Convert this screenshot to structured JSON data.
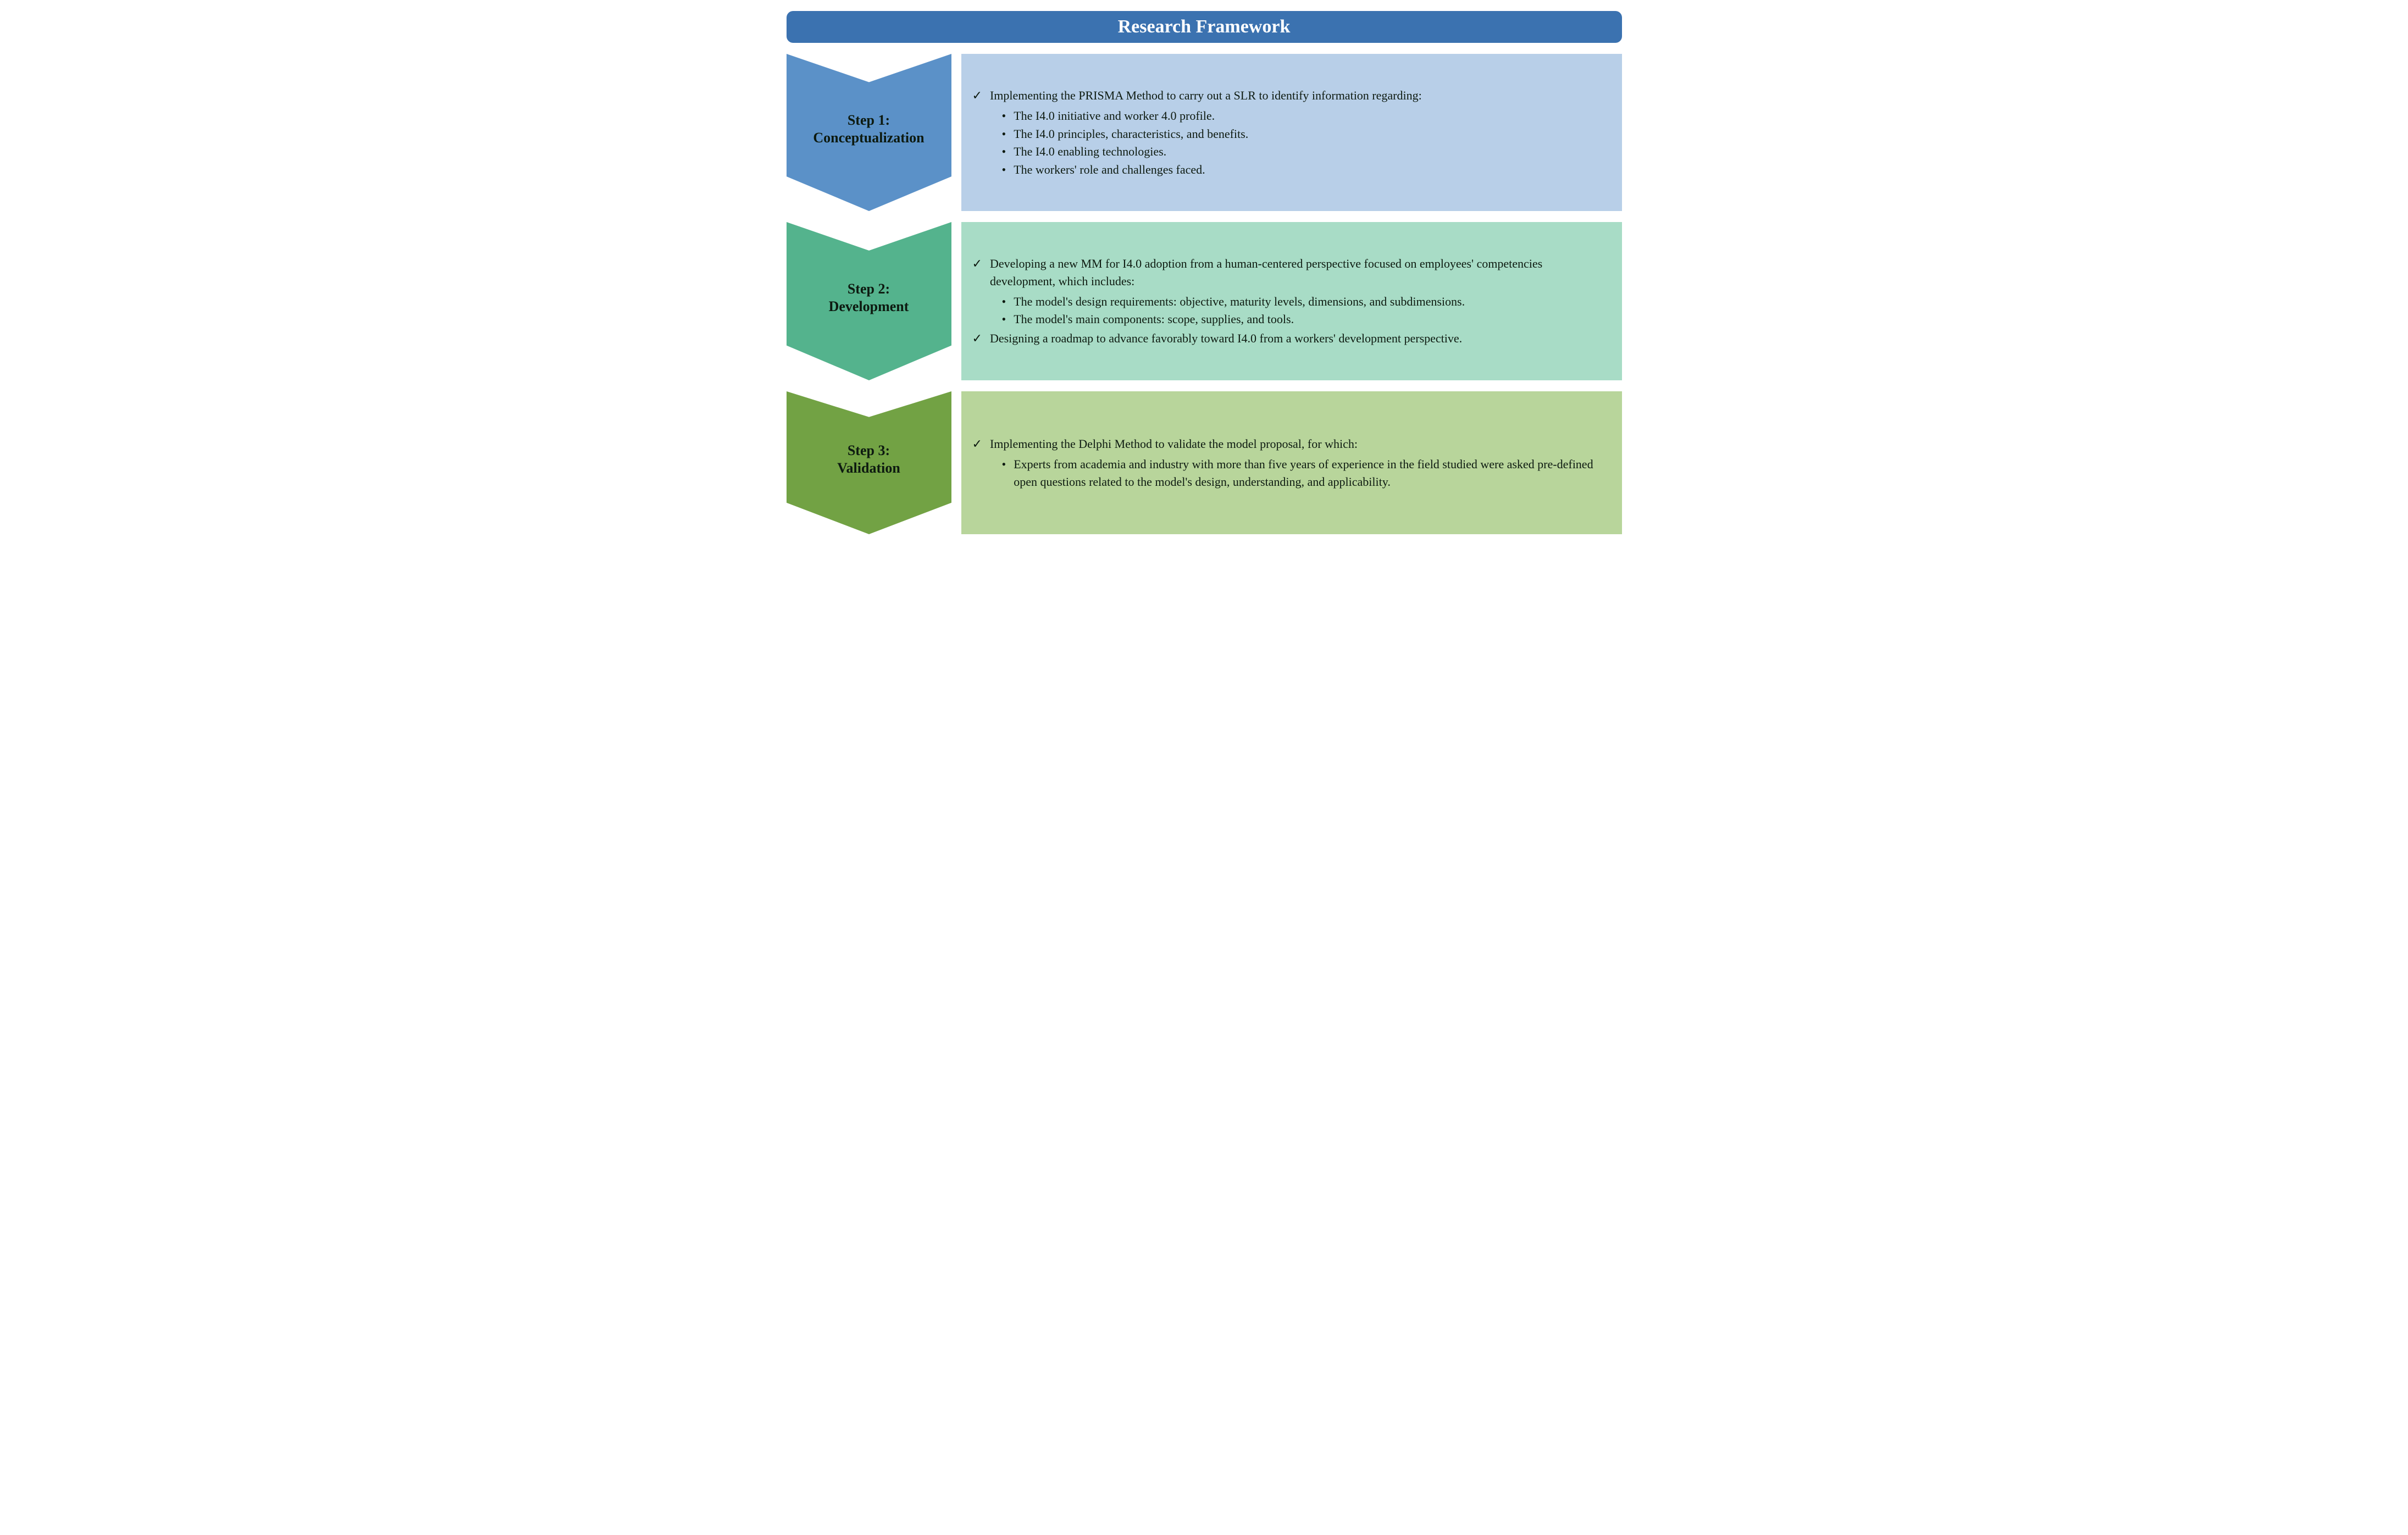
{
  "type": "infographic-flowchart",
  "background_color": "#ffffff",
  "text_color": "#0d1a10",
  "font_family": "Georgia, serif",
  "title_fontsize": 34,
  "step_label_fontsize": 26,
  "body_fontsize": 22,
  "header": {
    "title": "Research Framework",
    "bg_color": "#3b72b0",
    "text_color": "#ffffff",
    "border_radius": 12
  },
  "check_glyph": "✓",
  "bullet_glyph": "•",
  "steps": [
    {
      "id": "step1",
      "label_line1": "Step 1:",
      "label_line2": "Conceptualization",
      "chevron_color": "#5b91c8",
      "content_bg": "#b8cfe8",
      "checks": [
        {
          "text": "Implementing the PRISMA Method to carry out a SLR to identify information regarding:",
          "bullets": [
            "The I4.0 initiative and worker 4.0 profile.",
            "The I4.0 principles, characteristics, and benefits.",
            "The I4.0 enabling technologies.",
            "The workers' role and challenges faced."
          ]
        }
      ]
    },
    {
      "id": "step2",
      "label_line1": "Step 2:",
      "label_line2": "Development",
      "chevron_color": "#54b38d",
      "content_bg": "#a8dcc6",
      "checks": [
        {
          "text": "Developing a new MM for I4.0 adoption from a human-centered perspective focused on employees' competencies development, which includes:",
          "bullets": [
            "The model's design requirements: objective, maturity levels, dimensions, and subdimensions.",
            "The model's main components: scope, supplies, and tools."
          ]
        },
        {
          "text": "Designing a roadmap to advance favorably toward I4.0 from a workers' development perspective.",
          "bullets": []
        }
      ]
    },
    {
      "id": "step3",
      "label_line1": "Step 3:",
      "label_line2": "Validation",
      "chevron_color": "#72a244",
      "content_bg": "#b8d59b",
      "checks": [
        {
          "text": "Implementing the Delphi Method to validate the model proposal, for which:",
          "bullets": [
            "Experts from academia and industry with more than five years of experience in the field studied were asked pre-defined open questions related to the model's design, understanding, and applicability."
          ]
        }
      ]
    }
  ]
}
